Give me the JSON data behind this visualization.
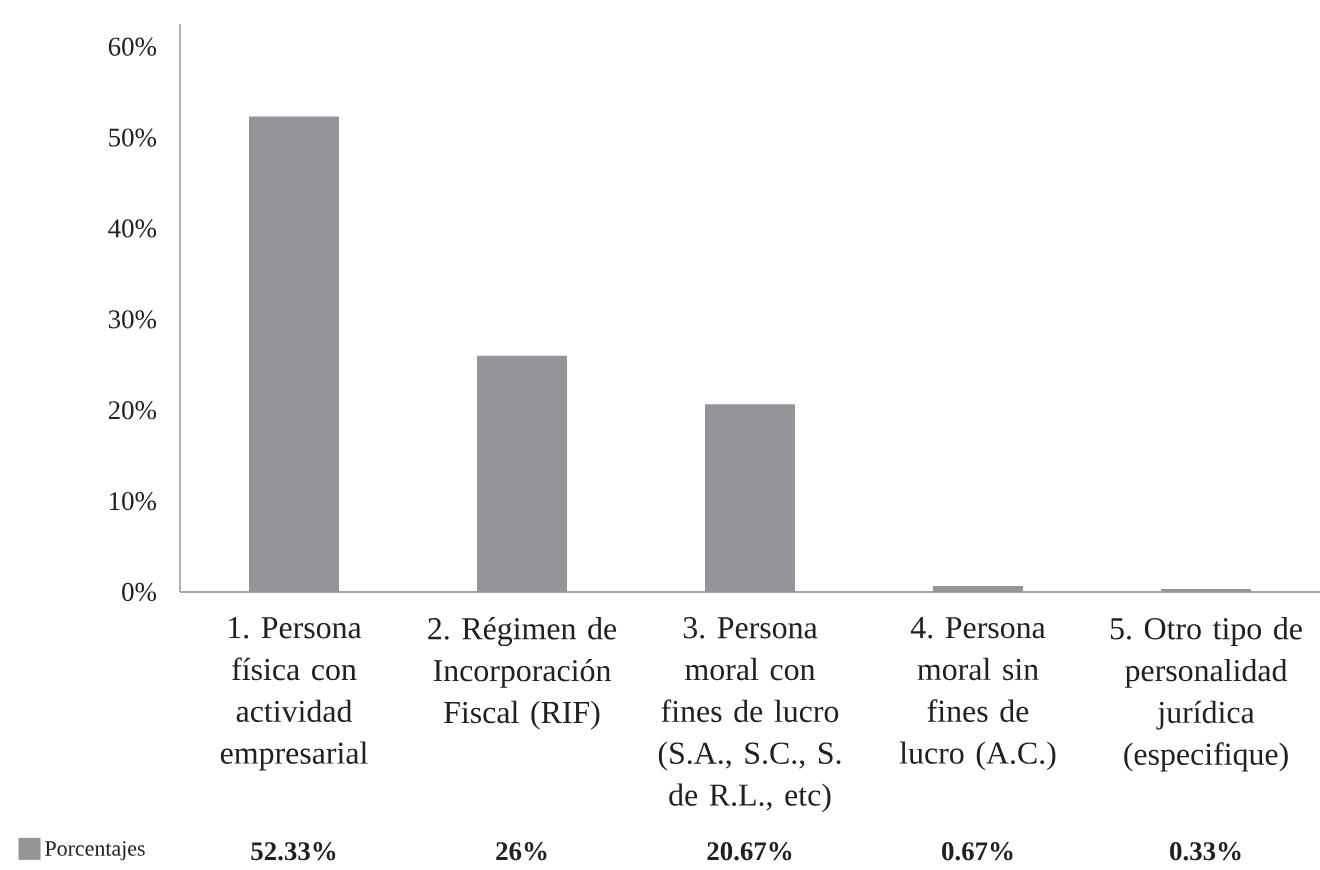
{
  "chart_data": {
    "type": "bar",
    "categories": [
      "1. Persona física con actividad empresarial",
      "2. Régimen de Incorporación Fiscal (RIF)",
      "3. Persona moral con fines de lucro (S.A., S.C., S. de R.L., etc)",
      "4. Persona moral sin fines de lucro (A.C.)",
      "5. Otro tipo de personalidad jurídica (especifique)"
    ],
    "series": [
      {
        "name": "Porcentajes",
        "color": "#939598",
        "values": [
          52.33,
          26,
          20.67,
          0.67,
          0.33
        ],
        "value_labels": [
          "52.33%",
          "26%",
          "20.67%",
          "0.67%",
          "0.33%"
        ]
      }
    ],
    "ylim": [
      0,
      62.5
    ],
    "yticks": [
      {
        "value": 0,
        "label": "0%"
      },
      {
        "value": 10,
        "label": "10%"
      },
      {
        "value": 20,
        "label": "20%"
      },
      {
        "value": 30,
        "label": "30%"
      },
      {
        "value": 40,
        "label": "40%"
      },
      {
        "value": 50,
        "label": "50%"
      },
      {
        "value": 60,
        "label": "60%"
      }
    ],
    "legend": "bottom left"
  }
}
